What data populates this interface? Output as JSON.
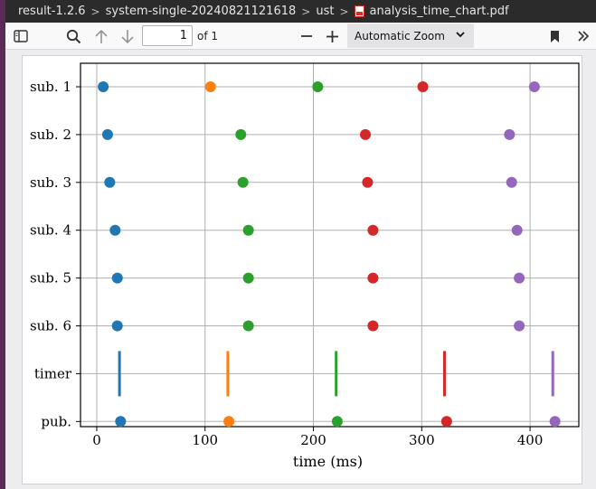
{
  "breadcrumb": {
    "items": [
      "result-1.2.6",
      "system-single-20240821121618",
      "ust"
    ],
    "file": "analysis_time_chart.pdf"
  },
  "toolbar": {
    "page_number": "1",
    "page_count": "of 1",
    "zoom": "Automatic Zoom"
  },
  "icons": {
    "sidebar": "sidebar-toggle-icon",
    "search": "search-icon",
    "prev": "arrow-up-icon",
    "next": "arrow-down-icon",
    "zoom_out": "minus-icon",
    "zoom_in": "plus-icon",
    "bookmark": "bookmark-icon",
    "more": "chevron-double-right-icon"
  },
  "chart_data": {
    "type": "scatter",
    "title": "",
    "xlabel": "time (ms)",
    "ylabel": "",
    "xlim": [
      -15,
      445
    ],
    "xticks": [
      0,
      100,
      200,
      300,
      400
    ],
    "grid": true,
    "categories": [
      "sub. 1",
      "sub. 2",
      "sub. 3",
      "sub. 4",
      "sub. 5",
      "sub. 6",
      "timer",
      "pub."
    ],
    "series": [
      {
        "color": "#1f77b4",
        "points": [
          {
            "row": "sub. 1",
            "x": 6
          },
          {
            "row": "sub. 2",
            "x": 10
          },
          {
            "row": "sub. 3",
            "x": 12
          },
          {
            "row": "sub. 4",
            "x": 17
          },
          {
            "row": "sub. 5",
            "x": 19
          },
          {
            "row": "sub. 6",
            "x": 19
          },
          {
            "row": "timer",
            "x": 21,
            "marker": "line"
          },
          {
            "row": "pub.",
            "x": 22
          }
        ]
      },
      {
        "color": "#ff7f0e",
        "points": [
          {
            "row": "sub. 1",
            "x": 105
          },
          {
            "row": "timer",
            "x": 121,
            "marker": "line"
          },
          {
            "row": "pub.",
            "x": 122
          }
        ]
      },
      {
        "color": "#2ca02c",
        "points": [
          {
            "row": "sub. 1",
            "x": 204
          },
          {
            "row": "sub. 2",
            "x": 133
          },
          {
            "row": "sub. 3",
            "x": 135
          },
          {
            "row": "sub. 4",
            "x": 140
          },
          {
            "row": "sub. 5",
            "x": 140
          },
          {
            "row": "sub. 6",
            "x": 140
          },
          {
            "row": "timer",
            "x": 221,
            "marker": "line"
          },
          {
            "row": "pub.",
            "x": 222
          }
        ]
      },
      {
        "color": "#d62728",
        "points": [
          {
            "row": "sub. 1",
            "x": 301
          },
          {
            "row": "sub. 2",
            "x": 248
          },
          {
            "row": "sub. 3",
            "x": 250
          },
          {
            "row": "sub. 4",
            "x": 255
          },
          {
            "row": "sub. 5",
            "x": 255
          },
          {
            "row": "sub. 6",
            "x": 255
          },
          {
            "row": "timer",
            "x": 321,
            "marker": "line"
          },
          {
            "row": "pub.",
            "x": 323
          }
        ]
      },
      {
        "color": "#9467bd",
        "points": [
          {
            "row": "sub. 1",
            "x": 404
          },
          {
            "row": "sub. 2",
            "x": 381
          },
          {
            "row": "sub. 3",
            "x": 383
          },
          {
            "row": "sub. 4",
            "x": 388
          },
          {
            "row": "sub. 5",
            "x": 390
          },
          {
            "row": "sub. 6",
            "x": 390
          },
          {
            "row": "timer",
            "x": 421,
            "marker": "line"
          },
          {
            "row": "pub.",
            "x": 423
          }
        ]
      }
    ]
  }
}
